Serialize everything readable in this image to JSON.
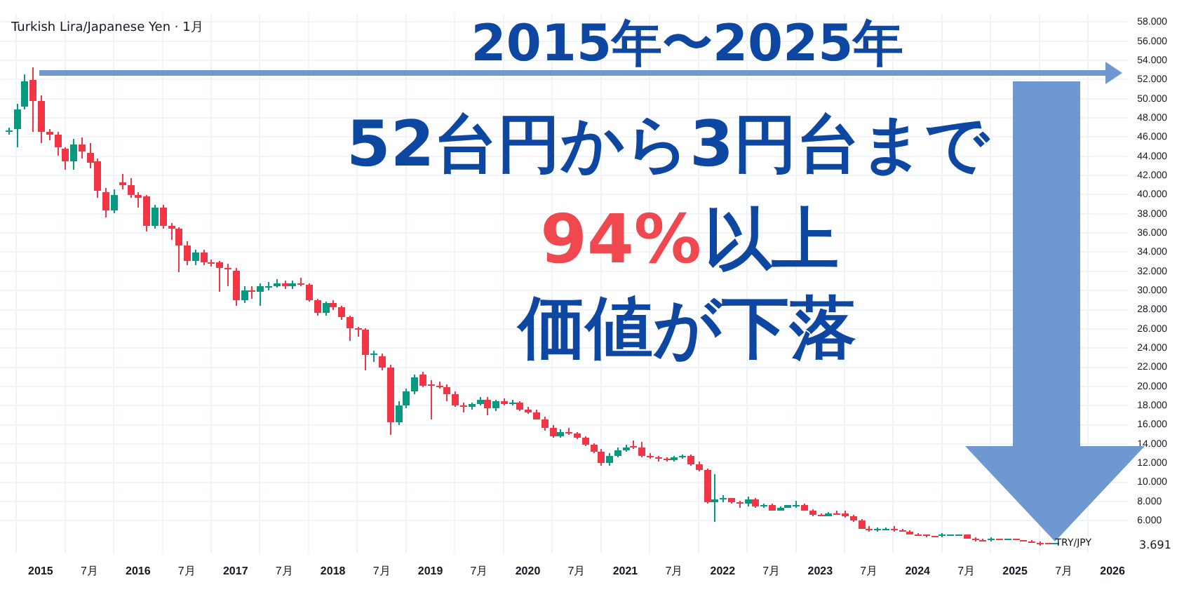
{
  "chart_data": {
    "type": "candlestick",
    "title": "Turkish Lira/Japanese Yen · 1月",
    "annotations": [
      "2015年〜2025年",
      "52台円から3円台まで",
      "94%",
      "以上",
      "価値が下落",
      "TRY/JPY",
      "3.691"
    ],
    "x": [
      "2014-09",
      "2014-10",
      "2014-11",
      "2014-12",
      "2015-01",
      "2015-02",
      "2015-03",
      "2015-04",
      "2015-05",
      "2015-06",
      "2015-07",
      "2015-08",
      "2015-09",
      "2015-10",
      "2015-11",
      "2015-12",
      "2016-01",
      "2016-02",
      "2016-03",
      "2016-04",
      "2016-05",
      "2016-06",
      "2016-07",
      "2016-08",
      "2016-09",
      "2016-10",
      "2016-11",
      "2016-12",
      "2017-01",
      "2017-02",
      "2017-03",
      "2017-04",
      "2017-05",
      "2017-06",
      "2017-07",
      "2017-08",
      "2017-09",
      "2017-10",
      "2017-11",
      "2017-12",
      "2018-01",
      "2018-02",
      "2018-03",
      "2018-04",
      "2018-05",
      "2018-06",
      "2018-07",
      "2018-08",
      "2018-09",
      "2018-10",
      "2018-11",
      "2018-12",
      "2019-01",
      "2019-02",
      "2019-03",
      "2019-04",
      "2019-05",
      "2019-06",
      "2019-07",
      "2019-08",
      "2019-09",
      "2019-10",
      "2019-11",
      "2019-12",
      "2020-01",
      "2020-02",
      "2020-03",
      "2020-04",
      "2020-05",
      "2020-06",
      "2020-07",
      "2020-08",
      "2020-09",
      "2020-10",
      "2020-11",
      "2020-12",
      "2021-01",
      "2021-02",
      "2021-03",
      "2021-04",
      "2021-05",
      "2021-06",
      "2021-07",
      "2021-08",
      "2021-09",
      "2021-10",
      "2021-11",
      "2021-12",
      "2022-01",
      "2022-02",
      "2022-03",
      "2022-04",
      "2022-05",
      "2022-06",
      "2022-07",
      "2022-08",
      "2022-09",
      "2022-10",
      "2022-11",
      "2022-12",
      "2023-01",
      "2023-02",
      "2023-03",
      "2023-04",
      "2023-05",
      "2023-06",
      "2023-07",
      "2023-08",
      "2023-09",
      "2023-10",
      "2023-11",
      "2023-12",
      "2024-01",
      "2024-02",
      "2024-03",
      "2024-04",
      "2024-05",
      "2024-06",
      "2024-07",
      "2024-08",
      "2024-09",
      "2024-10",
      "2024-11",
      "2024-12",
      "2025-01",
      "2025-02",
      "2025-03",
      "2025-04",
      "2025-05",
      "2025-06"
    ],
    "ohlc": [
      [
        46.6,
        47.0,
        46.3,
        46.7
      ],
      [
        46.8,
        49.4,
        45.0,
        48.9
      ],
      [
        49.2,
        52.5,
        48.9,
        51.8
      ],
      [
        51.9,
        53.3,
        46.6,
        49.8
      ],
      [
        49.8,
        50.4,
        45.4,
        46.6
      ],
      [
        46.5,
        46.9,
        45.7,
        46.3
      ],
      [
        46.3,
        46.5,
        44.1,
        45.0
      ],
      [
        44.8,
        45.0,
        42.6,
        43.4
      ],
      [
        43.4,
        45.8,
        42.6,
        45.2
      ],
      [
        45.2,
        46.0,
        43.8,
        44.5
      ],
      [
        44.4,
        45.4,
        42.8,
        43.3
      ],
      [
        43.4,
        43.8,
        39.7,
        40.4
      ],
      [
        40.2,
        40.7,
        37.6,
        38.4
      ],
      [
        38.4,
        40.6,
        38.1,
        40.0
      ],
      [
        41.3,
        42.2,
        40.6,
        41.0
      ],
      [
        41.0,
        41.7,
        39.7,
        40.0
      ],
      [
        39.9,
        40.2,
        38.7,
        39.6
      ],
      [
        39.8,
        40.0,
        36.2,
        36.8
      ],
      [
        36.8,
        39.0,
        36.5,
        38.7
      ],
      [
        38.7,
        39.0,
        36.4,
        36.7
      ],
      [
        36.7,
        37.0,
        35.3,
        36.4
      ],
      [
        36.4,
        36.6,
        31.9,
        34.7
      ],
      [
        34.7,
        35.1,
        32.6,
        33.1
      ],
      [
        33.1,
        34.2,
        32.7,
        33.9
      ],
      [
        33.9,
        34.2,
        32.6,
        32.9
      ],
      [
        32.9,
        33.3,
        32.5,
        32.8
      ],
      [
        32.9,
        33.1,
        29.9,
        32.4
      ],
      [
        32.4,
        32.8,
        30.5,
        32.2
      ],
      [
        32.1,
        32.3,
        28.4,
        29.0
      ],
      [
        29.0,
        30.5,
        28.7,
        30.0
      ],
      [
        30.0,
        30.5,
        29.1,
        29.8
      ],
      [
        29.8,
        30.7,
        28.4,
        30.4
      ],
      [
        30.3,
        30.9,
        30.0,
        30.5
      ],
      [
        30.5,
        31.2,
        30.3,
        30.8
      ],
      [
        30.8,
        31.1,
        30.1,
        30.4
      ],
      [
        30.4,
        31.1,
        30.2,
        30.8
      ],
      [
        30.8,
        31.3,
        30.4,
        30.6
      ],
      [
        30.6,
        30.8,
        28.8,
        29.0
      ],
      [
        29.0,
        29.1,
        27.4,
        27.7
      ],
      [
        27.7,
        28.9,
        27.4,
        28.7
      ],
      [
        28.7,
        29.0,
        27.9,
        28.2
      ],
      [
        28.2,
        28.4,
        26.9,
        27.2
      ],
      [
        27.2,
        27.4,
        24.8,
        26.0
      ],
      [
        26.0,
        26.2,
        25.2,
        25.9
      ],
      [
        25.9,
        26.1,
        21.7,
        23.3
      ],
      [
        23.3,
        23.7,
        22.6,
        23.4
      ],
      [
        23.2,
        23.4,
        21.7,
        22.0
      ],
      [
        22.0,
        22.2,
        15.0,
        16.2
      ],
      [
        16.2,
        18.5,
        15.9,
        18.0
      ],
      [
        18.0,
        19.8,
        17.7,
        19.5
      ],
      [
        19.5,
        21.2,
        19.2,
        21.0
      ],
      [
        21.2,
        21.5,
        19.9,
        20.1
      ],
      [
        20.2,
        20.7,
        16.6,
        20.0
      ],
      [
        20.1,
        20.5,
        19.7,
        19.9
      ],
      [
        19.9,
        20.2,
        18.5,
        19.2
      ],
      [
        19.2,
        19.5,
        17.8,
        18.0
      ],
      [
        18.0,
        18.3,
        17.3,
        17.9
      ],
      [
        17.9,
        18.3,
        17.6,
        18.1
      ],
      [
        18.2,
        18.9,
        18.0,
        18.6
      ],
      [
        18.6,
        18.9,
        17.0,
        17.7
      ],
      [
        17.7,
        18.6,
        17.5,
        18.4
      ],
      [
        18.4,
        18.7,
        18.0,
        18.2
      ],
      [
        18.2,
        18.6,
        18.0,
        18.3
      ],
      [
        18.3,
        18.5,
        17.5,
        17.6
      ],
      [
        17.6,
        17.9,
        17.2,
        17.3
      ],
      [
        17.3,
        17.6,
        16.5,
        16.6
      ],
      [
        16.6,
        16.9,
        15.4,
        15.7
      ],
      [
        15.7,
        15.9,
        14.7,
        14.8
      ],
      [
        14.8,
        15.5,
        14.6,
        15.3
      ],
      [
        15.3,
        15.7,
        15.0,
        15.1
      ],
      [
        15.1,
        15.3,
        14.5,
        14.6
      ],
      [
        14.6,
        14.8,
        13.8,
        13.9
      ],
      [
        13.9,
        14.1,
        13.1,
        13.2
      ],
      [
        13.2,
        13.5,
        11.7,
        12.0
      ],
      [
        12.0,
        13.1,
        11.8,
        12.8
      ],
      [
        12.8,
        13.6,
        12.6,
        13.4
      ],
      [
        13.4,
        13.9,
        13.2,
        13.7
      ],
      [
        13.8,
        14.4,
        13.5,
        13.6
      ],
      [
        13.6,
        14.2,
        12.6,
        12.8
      ],
      [
        12.8,
        13.0,
        12.4,
        12.6
      ],
      [
        12.6,
        12.8,
        12.2,
        12.4
      ],
      [
        12.4,
        12.6,
        12.1,
        12.3
      ],
      [
        12.3,
        12.7,
        12.1,
        12.6
      ],
      [
        12.6,
        12.9,
        12.4,
        12.7
      ],
      [
        12.7,
        12.9,
        11.8,
        11.9
      ],
      [
        11.9,
        12.1,
        11.1,
        11.3
      ],
      [
        11.3,
        11.5,
        7.8,
        7.9
      ],
      [
        7.9,
        10.8,
        5.9,
        8.2
      ],
      [
        8.2,
        8.6,
        7.9,
        8.3
      ],
      [
        8.3,
        8.4,
        7.8,
        7.9
      ],
      [
        7.9,
        8.1,
        7.4,
        7.8
      ],
      [
        7.8,
        8.5,
        7.5,
        8.2
      ],
      [
        8.2,
        8.3,
        7.4,
        7.5
      ],
      [
        7.5,
        7.8,
        7.3,
        7.7
      ],
      [
        7.7,
        7.8,
        7.0,
        7.1
      ],
      [
        7.1,
        7.5,
        7.0,
        7.4
      ],
      [
        7.4,
        7.7,
        7.3,
        7.6
      ],
      [
        7.6,
        8.0,
        7.4,
        7.7
      ],
      [
        7.7,
        7.8,
        7.0,
        7.1
      ],
      [
        7.1,
        7.2,
        6.5,
        6.6
      ],
      [
        6.6,
        6.8,
        6.4,
        6.5
      ],
      [
        6.5,
        6.9,
        6.4,
        6.8
      ],
      [
        6.8,
        7.0,
        6.6,
        6.7
      ],
      [
        6.7,
        7.0,
        6.3,
        6.5
      ],
      [
        6.5,
        6.6,
        5.9,
        6.0
      ],
      [
        6.0,
        6.1,
        5.1,
        5.2
      ],
      [
        5.2,
        5.4,
        4.9,
        5.0
      ],
      [
        5.0,
        5.3,
        4.9,
        5.1
      ],
      [
        5.1,
        5.3,
        5.0,
        5.2
      ],
      [
        5.2,
        5.4,
        4.8,
        5.0
      ],
      [
        5.0,
        5.1,
        4.8,
        4.9
      ],
      [
        4.9,
        5.0,
        4.5,
        4.6
      ],
      [
        4.6,
        4.7,
        4.4,
        4.5
      ],
      [
        4.5,
        4.6,
        4.3,
        4.4
      ],
      [
        4.42,
        4.48,
        4.3,
        4.36
      ],
      [
        4.36,
        4.68,
        4.24,
        4.52
      ],
      [
        4.46,
        4.58,
        4.42,
        4.52
      ],
      [
        4.52,
        4.6,
        4.45,
        4.56
      ],
      [
        4.56,
        4.62,
        4.05,
        4.12
      ],
      [
        4.12,
        4.25,
        3.9,
        3.98
      ],
      [
        3.98,
        4.05,
        3.88,
        3.93
      ],
      [
        3.93,
        4.25,
        3.8,
        4.08
      ],
      [
        4.08,
        4.15,
        3.95,
        4.0
      ],
      [
        4.0,
        4.12,
        3.96,
        4.08
      ],
      [
        4.08,
        4.12,
        3.95,
        3.98
      ],
      [
        3.98,
        4.02,
        3.84,
        3.87
      ],
      [
        3.87,
        3.95,
        3.62,
        3.68
      ],
      [
        3.68,
        3.85,
        3.42,
        3.55
      ],
      [
        3.62,
        3.68,
        3.5,
        3.58
      ],
      [
        3.62,
        3.71,
        3.47,
        3.691
      ]
    ],
    "xlim": [
      "2014-08",
      "2026-03"
    ],
    "xticks": [
      {
        "value": "2015-01",
        "label": "2015"
      },
      {
        "value": "2015-07",
        "label": "7月"
      },
      {
        "value": "2016-01",
        "label": "2016"
      },
      {
        "value": "2016-07",
        "label": "7月"
      },
      {
        "value": "2017-01",
        "label": "2017"
      },
      {
        "value": "2017-07",
        "label": "7月"
      },
      {
        "value": "2018-01",
        "label": "2018"
      },
      {
        "value": "2018-07",
        "label": "7月"
      },
      {
        "value": "2019-01",
        "label": "2019"
      },
      {
        "value": "2019-07",
        "label": "7月"
      },
      {
        "value": "2020-01",
        "label": "2020"
      },
      {
        "value": "2020-07",
        "label": "7月"
      },
      {
        "value": "2021-01",
        "label": "2021"
      },
      {
        "value": "2021-07",
        "label": "7月"
      },
      {
        "value": "2022-01",
        "label": "2022"
      },
      {
        "value": "2022-07",
        "label": "7月"
      },
      {
        "value": "2023-01",
        "label": "2023"
      },
      {
        "value": "2023-07",
        "label": "7月"
      },
      {
        "value": "2024-01",
        "label": "2024"
      },
      {
        "value": "2024-07",
        "label": "7月"
      },
      {
        "value": "2025-01",
        "label": "2025"
      },
      {
        "value": "2025-07",
        "label": "7月"
      },
      {
        "value": "2026-01",
        "label": "2026"
      }
    ],
    "ylim": [
      2.6,
      58.8
    ],
    "yticks": [
      {
        "value": 6,
        "label": "6.000"
      },
      {
        "value": 8,
        "label": "8.000"
      },
      {
        "value": 10,
        "label": "10.000"
      },
      {
        "value": 12,
        "label": "12.000"
      },
      {
        "value": 14,
        "label": "14.000"
      },
      {
        "value": 16,
        "label": "16.000"
      },
      {
        "value": 18,
        "label": "18.000"
      },
      {
        "value": 20,
        "label": "20.000"
      },
      {
        "value": 22,
        "label": "22.000"
      },
      {
        "value": 24,
        "label": "24.000"
      },
      {
        "value": 26,
        "label": "26.000"
      },
      {
        "value": 28,
        "label": "28.000"
      },
      {
        "value": 30,
        "label": "30.000"
      },
      {
        "value": 32,
        "label": "32.000"
      },
      {
        "value": 34,
        "label": "34.000"
      },
      {
        "value": 36,
        "label": "36.000"
      },
      {
        "value": 38,
        "label": "38.000"
      },
      {
        "value": 40,
        "label": "40.000"
      },
      {
        "value": 42,
        "label": "42.000"
      },
      {
        "value": 44,
        "label": "44.000"
      },
      {
        "value": 46,
        "label": "46.000"
      },
      {
        "value": 48,
        "label": "48.000"
      },
      {
        "value": 50,
        "label": "50.000"
      },
      {
        "value": 52,
        "label": "52.000"
      },
      {
        "value": 54,
        "label": "54.000"
      },
      {
        "value": 56,
        "label": "56.000"
      },
      {
        "value": 58,
        "label": "58.000"
      }
    ],
    "grid": true
  }
}
